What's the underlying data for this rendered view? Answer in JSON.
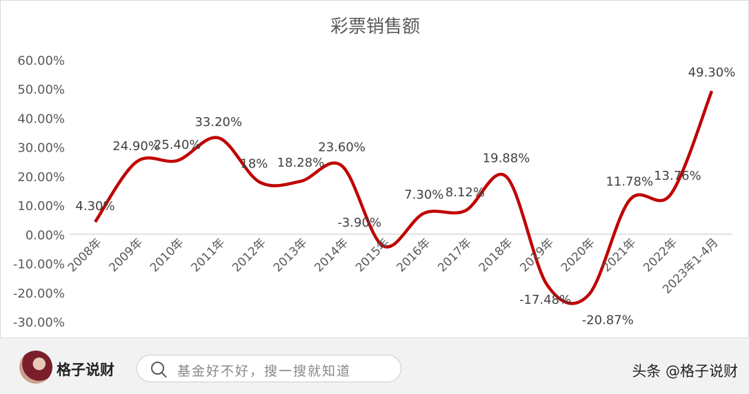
{
  "chart_data": {
    "type": "line",
    "title": "彩票销售额",
    "categories": [
      "2008年",
      "2009年",
      "2010年",
      "2011年",
      "2012年",
      "2013年",
      "2014年",
      "2015年",
      "2016年",
      "2017年",
      "2018年",
      "2019年",
      "2020年",
      "2021年",
      "2022年",
      "2023年1-4月"
    ],
    "values": [
      4.3,
      24.9,
      25.4,
      33.2,
      18,
      18.28,
      23.6,
      -3.9,
      7.3,
      8.12,
      19.88,
      -17.48,
      -20.87,
      11.78,
      13.76,
      49.3
    ],
    "data_labels": [
      "4.30%",
      "24.90%",
      "25.40%",
      "33.20%",
      "18%",
      "18.28%",
      "23.60%",
      "-3.90%",
      "7.30%",
      "8.12%",
      "19.88%",
      "-17.48%",
      "-20.87%",
      "11.78%",
      "13.76%",
      "49.30%"
    ],
    "y_ticks": [
      "60.00%",
      "50.00%",
      "40.00%",
      "30.00%",
      "20.00%",
      "10.00%",
      "0.00%",
      "-10.00%",
      "-20.00%",
      "-30.00%"
    ],
    "ylim": [
      -30,
      60
    ],
    "smooth": true,
    "grid": false,
    "line_color": "#c00000"
  },
  "footer": {
    "author": "格子说财",
    "search_placeholder": "基金好不好，搜一搜就知道",
    "watermark": "头条 @格子说财"
  }
}
